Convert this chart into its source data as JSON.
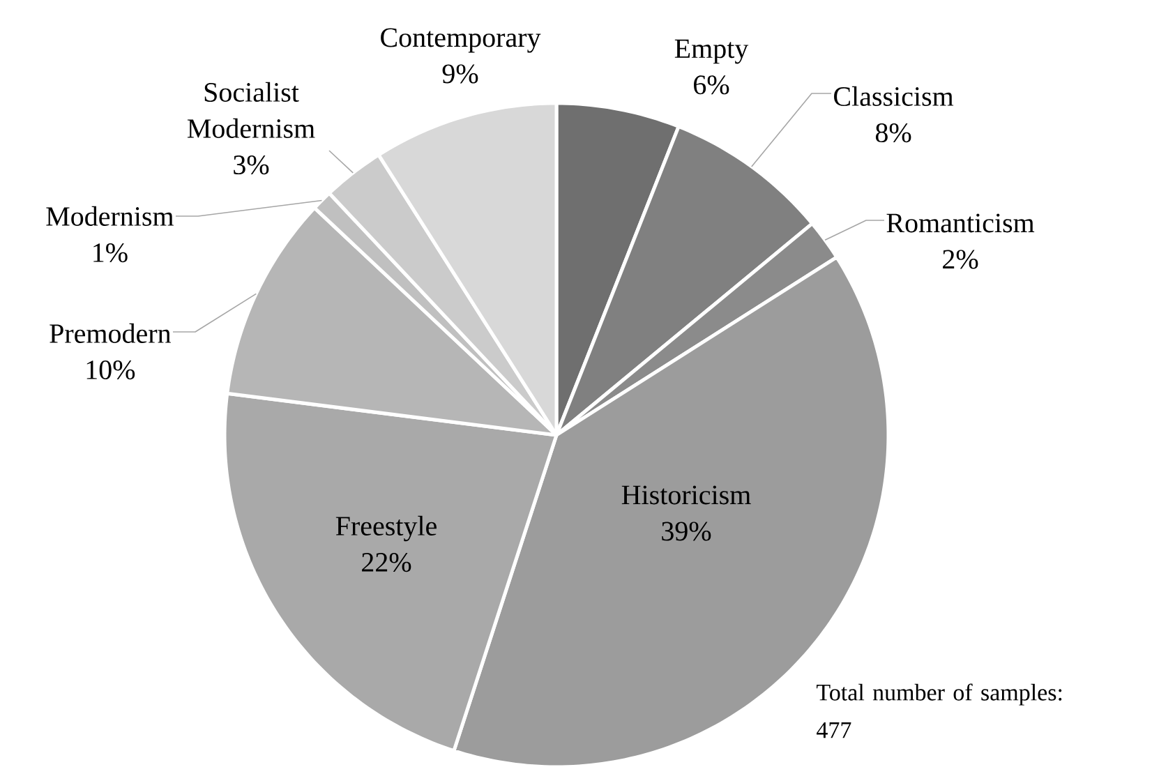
{
  "chart_data": {
    "type": "pie",
    "categories": [
      "Empty",
      "Classicism",
      "Romanticism",
      "Historicism",
      "Freestyle",
      "Premodern",
      "Modernism",
      "Socialist Modernism",
      "Contemporary"
    ],
    "values": [
      6,
      8,
      2,
      39,
      22,
      10,
      1,
      3,
      9
    ],
    "value_labels": [
      "6%",
      "8%",
      "2%",
      "39%",
      "22%",
      "10%",
      "1%",
      "3%",
      "9%"
    ],
    "colors": [
      "#6f6f6f",
      "#808080",
      "#8b8b8b",
      "#9c9c9c",
      "#a9a9a9",
      "#b6b6b6",
      "#c0c0c0",
      "#cbcbcb",
      "#d8d8d8"
    ],
    "annotations": [
      "Total number of samples: 477"
    ]
  }
}
